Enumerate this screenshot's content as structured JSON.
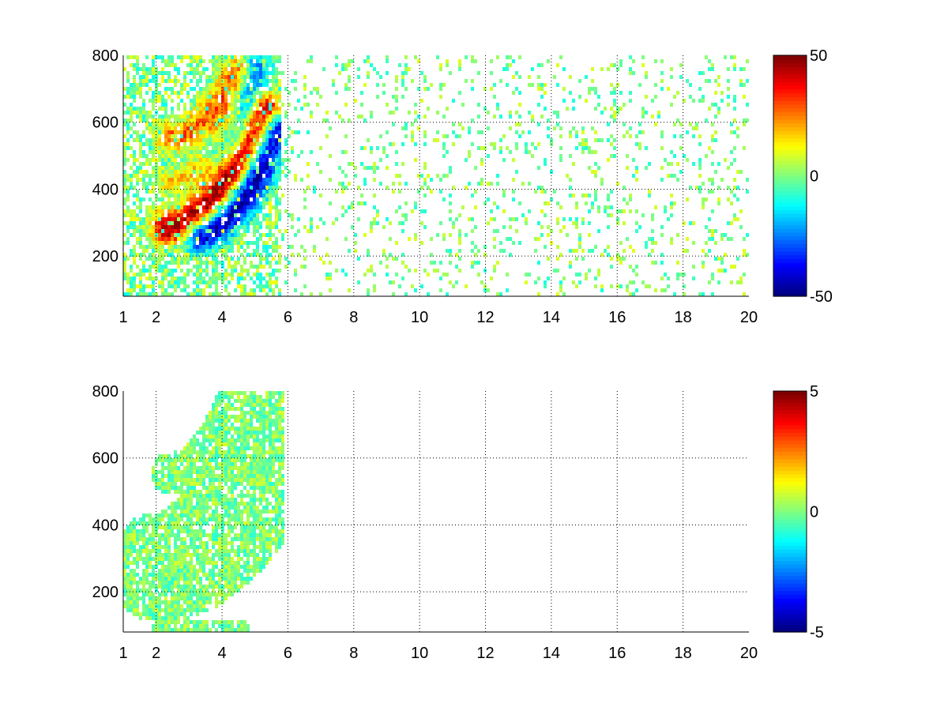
{
  "chart_data": [
    {
      "type": "heatmap",
      "panel": "top",
      "title": "",
      "xlabel": "",
      "ylabel": "",
      "xlim": [
        1,
        20
      ],
      "ylim": [
        80,
        800
      ],
      "x_ticks": [
        1,
        2,
        4,
        6,
        8,
        10,
        12,
        14,
        16,
        18,
        20
      ],
      "y_ticks": [
        200,
        400,
        600,
        800
      ],
      "grid": true,
      "colormap": "jet",
      "clim": [
        -50,
        50
      ],
      "colorbar_ticks": [
        -50,
        0,
        50
      ],
      "features": [
        {
          "kind": "ridge",
          "sign": "positive",
          "start": [
            2.3,
            290
          ],
          "end": [
            5.3,
            640
          ],
          "bend": [
            3.6,
            300
          ],
          "amp": 0.95,
          "width": 32
        },
        {
          "kind": "ridge",
          "sign": "negative",
          "start": [
            3.3,
            270
          ],
          "end": [
            5.6,
            590
          ],
          "bend": [
            4.7,
            320
          ],
          "amp": 0.95,
          "width": 30
        },
        {
          "kind": "ridge",
          "sign": "positive",
          "start": [
            2.4,
            560
          ],
          "end": [
            4.4,
            760
          ],
          "bend": [
            3.5,
            570
          ],
          "amp": 0.55,
          "width": 28
        },
        {
          "kind": "ridge",
          "sign": "negative",
          "start": [
            3.8,
            520
          ],
          "end": [
            5.0,
            780
          ],
          "bend": [
            4.6,
            540
          ],
          "amp": 0.45,
          "width": 28
        },
        {
          "kind": "ridge",
          "sign": "positive",
          "start": [
            2.4,
            430
          ],
          "end": [
            4.2,
            620
          ],
          "bend": [
            3.4,
            440
          ],
          "amp": 0.35,
          "width": 22
        }
      ],
      "field_extent": {
        "x_max": 5.75,
        "y_max": 800
      },
      "speckle_density": 0.14
    },
    {
      "type": "heatmap",
      "panel": "bottom",
      "title": "",
      "xlabel": "",
      "ylabel": "",
      "xlim": [
        1,
        20
      ],
      "ylim": [
        80,
        800
      ],
      "x_ticks": [
        1,
        2,
        4,
        6,
        8,
        10,
        12,
        14,
        16,
        18,
        20
      ],
      "y_ticks": [
        200,
        400,
        600,
        800
      ],
      "grid": true,
      "colormap": "jet",
      "clim": [
        -5,
        5
      ],
      "colorbar_ticks": [
        -5,
        0,
        5
      ],
      "features": [
        {
          "kind": "band",
          "start": [
            2.1,
            280
          ],
          "end": [
            5.7,
            640
          ],
          "bend": [
            3.8,
            290
          ],
          "amp": 0.12,
          "width": 70
        },
        {
          "kind": "band",
          "start": [
            2.4,
            560
          ],
          "end": [
            4.4,
            780
          ],
          "bend": [
            3.5,
            560
          ],
          "amp": 0.08,
          "width": 26
        },
        {
          "kind": "band",
          "start": [
            2.0,
            100
          ],
          "end": [
            4.6,
            100
          ],
          "bend": [
            3.3,
            100
          ],
          "amp": 0.08,
          "width": 8
        }
      ],
      "field_extent": {
        "x_max": 5.8,
        "y_max": 800
      },
      "speckle_density": 0.0
    }
  ]
}
